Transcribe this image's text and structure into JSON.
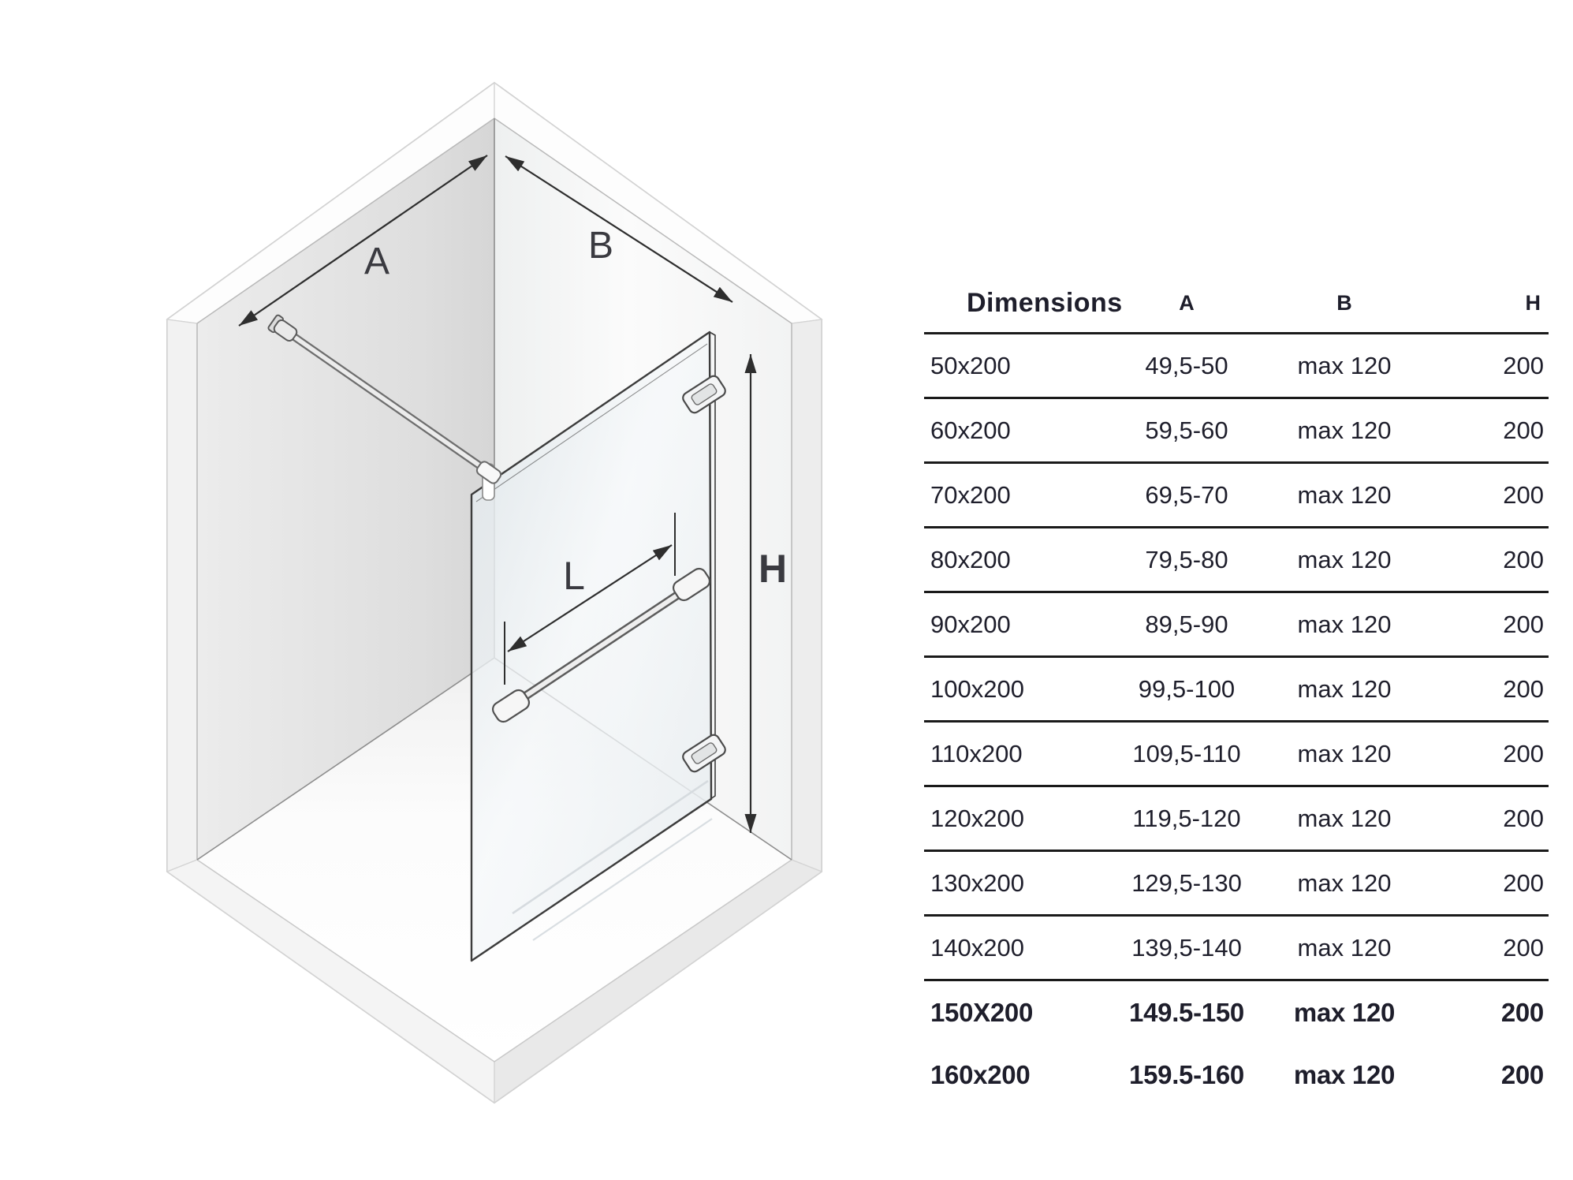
{
  "diagram": {
    "labels": {
      "a": "A",
      "b": "B",
      "h": "H",
      "l": "L"
    }
  },
  "table": {
    "header": {
      "dimensions": "Dimensions",
      "a": "A",
      "b": "B",
      "h": "H"
    },
    "rows": [
      {
        "dimensions": "50x200",
        "a": "49,5-50",
        "b": "max 120",
        "h": "200"
      },
      {
        "dimensions": "60x200",
        "a": "59,5-60",
        "b": "max 120",
        "h": "200"
      },
      {
        "dimensions": "70x200",
        "a": "69,5-70",
        "b": "max 120",
        "h": "200"
      },
      {
        "dimensions": "80x200",
        "a": "79,5-80",
        "b": "max 120",
        "h": "200"
      },
      {
        "dimensions": "90x200",
        "a": "89,5-90",
        "b": "max 120",
        "h": "200"
      },
      {
        "dimensions": "100x200",
        "a": "99,5-100",
        "b": "max 120",
        "h": "200"
      },
      {
        "dimensions": "110x200",
        "a": "109,5-110",
        "b": "max 120",
        "h": "200"
      },
      {
        "dimensions": "120x200",
        "a": "119,5-120",
        "b": "max 120",
        "h": "200"
      },
      {
        "dimensions": "130x200",
        "a": "129,5-130",
        "b": "max 120",
        "h": "200"
      },
      {
        "dimensions": "140x200",
        "a": "139,5-140",
        "b": "max 120",
        "h": "200"
      },
      {
        "dimensions": "150X200",
        "a": "149.5-150",
        "b": "max 120",
        "h": "200"
      },
      {
        "dimensions": "160x200",
        "a": "159.5-160",
        "b": "max 120",
        "h": "200"
      }
    ]
  },
  "colors": {
    "text_color": "#1e1e2b",
    "rule_color": "#1a1a1a",
    "diagram_line": "#2e2e2e",
    "label_color": "#3a3a40",
    "wall_left": "#e0e0e0",
    "wall_right": "#f7f8f8",
    "glass_tint": "#e4eaee"
  }
}
